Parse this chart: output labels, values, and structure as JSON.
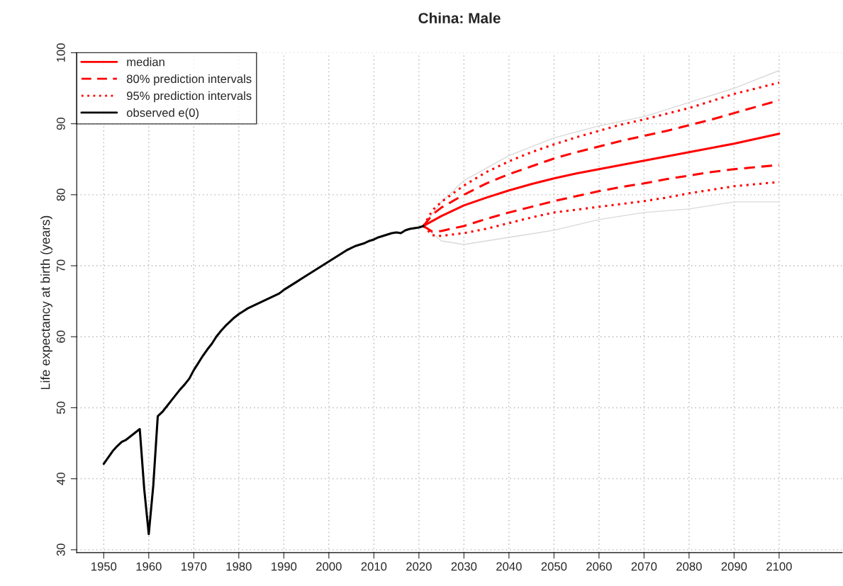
{
  "chart_data": {
    "type": "line",
    "title": "China: Male",
    "ylabel": "Life expectancy at birth (years)",
    "xlim": [
      1944,
      2114
    ],
    "ylim": [
      29.6,
      100
    ],
    "xticks": [
      1950,
      1960,
      1970,
      1980,
      1990,
      2000,
      2010,
      2020,
      2030,
      2040,
      2050,
      2060,
      2070,
      2080,
      2090,
      2100
    ],
    "yticks": [
      30,
      40,
      50,
      60,
      70,
      80,
      90,
      100
    ],
    "grid": true,
    "legend": "top left",
    "series": [
      {
        "color": "#d9d9d9",
        "line_style": "solid",
        "x": [
          2021,
          2025,
          2030,
          2040,
          2050,
          2060,
          2070,
          2080,
          2090,
          2100
        ],
        "values": [
          75.6,
          79.0,
          82.0,
          85.5,
          88.0,
          89.7,
          91.0,
          93.0,
          95.0,
          97.5
        ]
      },
      {
        "color": "#d9d9d9",
        "line_style": "solid",
        "x": [
          2021,
          2025,
          2030,
          2040,
          2050,
          2060,
          2070,
          2080,
          2090,
          2100
        ],
        "values": [
          75.6,
          73.5,
          73.0,
          74.0,
          75.0,
          76.5,
          77.5,
          78.0,
          79.0,
          79.0
        ]
      },
      {
        "name": "median",
        "color": "#ff0000",
        "line_style": "solid",
        "x": [
          2021,
          2025,
          2030,
          2035,
          2040,
          2045,
          2050,
          2055,
          2060,
          2065,
          2070,
          2075,
          2080,
          2085,
          2090,
          2095,
          2100
        ],
        "values": [
          75.6,
          77.0,
          78.5,
          79.6,
          80.6,
          81.5,
          82.3,
          83.0,
          83.6,
          84.2,
          84.8,
          85.4,
          86.0,
          86.6,
          87.2,
          87.9,
          88.6
        ]
      },
      {
        "name": "80% prediction intervals",
        "color": "#ff0000",
        "line_style": "dashed",
        "x": [
          2021,
          2023,
          2025,
          2030,
          2035,
          2040,
          2045,
          2050,
          2055,
          2060,
          2065,
          2070,
          2075,
          2080,
          2085,
          2090,
          2095,
          2100
        ],
        "values": [
          75.6,
          77.2,
          78.2,
          80.0,
          81.6,
          82.9,
          84.0,
          85.1,
          86.0,
          86.8,
          87.6,
          88.3,
          89.0,
          89.8,
          90.6,
          91.5,
          92.4,
          93.3
        ]
      },
      {
        "color": "#ff0000",
        "line_style": "dashed",
        "x": [
          2021,
          2023,
          2025,
          2030,
          2035,
          2040,
          2045,
          2050,
          2055,
          2060,
          2065,
          2070,
          2075,
          2080,
          2085,
          2090,
          2095,
          2100
        ],
        "values": [
          75.6,
          74.8,
          74.9,
          75.6,
          76.6,
          77.5,
          78.3,
          79.1,
          79.8,
          80.5,
          81.1,
          81.6,
          82.2,
          82.7,
          83.2,
          83.6,
          83.9,
          84.2
        ]
      },
      {
        "name": "95% prediction intervals",
        "color": "#ff0000",
        "line_style": "dotted",
        "x": [
          2021,
          2023,
          2025,
          2030,
          2035,
          2040,
          2045,
          2050,
          2055,
          2060,
          2065,
          2070,
          2075,
          2080,
          2085,
          2090,
          2095,
          2100
        ],
        "values": [
          75.6,
          77.8,
          79.0,
          81.3,
          83.2,
          84.7,
          86.0,
          87.1,
          88.1,
          89.0,
          89.9,
          90.6,
          91.4,
          92.2,
          93.2,
          94.2,
          95.0,
          95.8
        ]
      },
      {
        "color": "#ff0000",
        "line_style": "dotted",
        "x": [
          2021,
          2023,
          2025,
          2030,
          2035,
          2040,
          2045,
          2050,
          2055,
          2060,
          2065,
          2070,
          2075,
          2080,
          2085,
          2090,
          2095,
          2100
        ],
        "values": [
          75.6,
          74.3,
          74.2,
          74.6,
          75.2,
          76.0,
          76.8,
          77.5,
          77.9,
          78.3,
          78.7,
          79.1,
          79.6,
          80.2,
          80.7,
          81.2,
          81.5,
          81.8
        ]
      },
      {
        "name": "observed e(0)",
        "color": "#000000",
        "line_style": "solid",
        "x": [
          1950,
          1951,
          1952,
          1953,
          1954,
          1955,
          1956,
          1957,
          1958,
          1959,
          1960,
          1961,
          1962,
          1963,
          1964,
          1965,
          1966,
          1967,
          1968,
          1969,
          1970,
          1971,
          1972,
          1973,
          1974,
          1975,
          1976,
          1977,
          1978,
          1979,
          1980,
          1981,
          1982,
          1983,
          1984,
          1985,
          1986,
          1987,
          1988,
          1989,
          1990,
          1991,
          1992,
          1993,
          1994,
          1995,
          1996,
          1997,
          1998,
          1999,
          2000,
          2001,
          2002,
          2003,
          2004,
          2005,
          2006,
          2007,
          2008,
          2009,
          2010,
          2011,
          2012,
          2013,
          2014,
          2015,
          2016,
          2017,
          2018,
          2019,
          2020,
          2021
        ],
        "values": [
          42.1,
          43.0,
          43.9,
          44.6,
          45.2,
          45.5,
          46.0,
          46.5,
          47.0,
          38.5,
          32.2,
          39.0,
          48.8,
          49.4,
          50.2,
          51.0,
          51.8,
          52.6,
          53.3,
          54.1,
          55.3,
          56.3,
          57.3,
          58.2,
          59.0,
          60.0,
          60.8,
          61.5,
          62.1,
          62.7,
          63.2,
          63.6,
          64.0,
          64.3,
          64.6,
          64.9,
          65.2,
          65.5,
          65.8,
          66.1,
          66.6,
          67.0,
          67.4,
          67.8,
          68.2,
          68.6,
          69.0,
          69.4,
          69.8,
          70.2,
          70.6,
          71.0,
          71.4,
          71.8,
          72.2,
          72.5,
          72.8,
          73.0,
          73.2,
          73.5,
          73.7,
          74.0,
          74.2,
          74.4,
          74.6,
          74.7,
          74.6,
          75.0,
          75.2,
          75.3,
          75.4,
          75.6
        ]
      }
    ]
  }
}
